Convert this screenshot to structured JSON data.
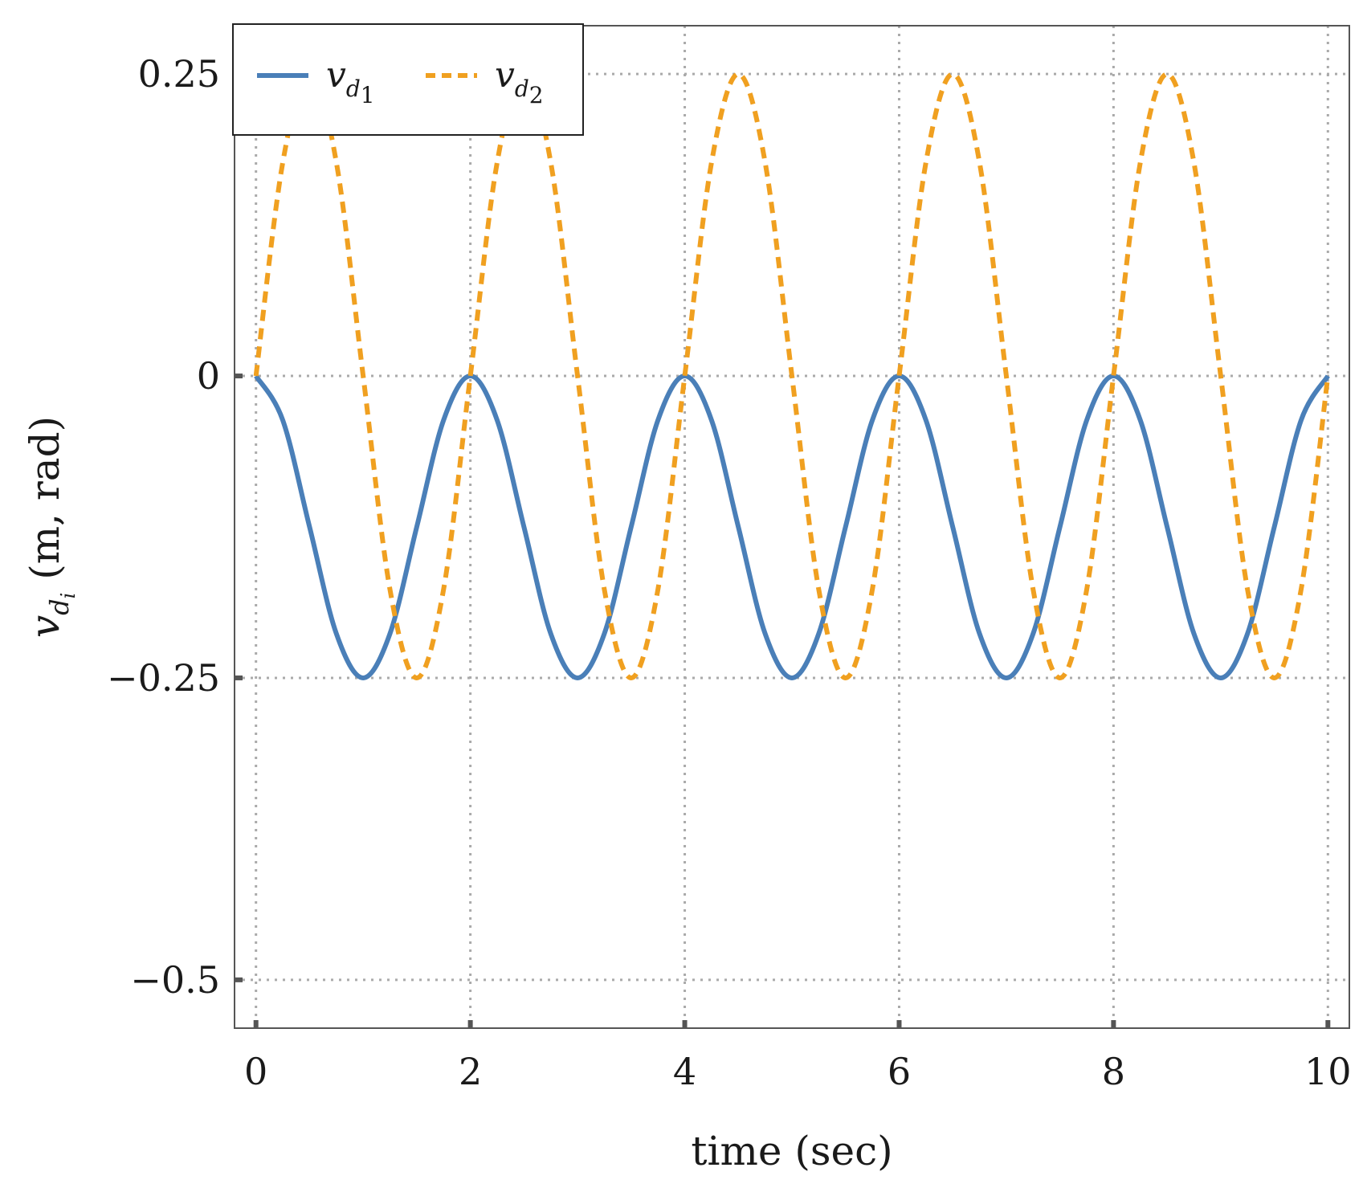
{
  "chart_data": {
    "type": "line",
    "xlabel": "time (sec)",
    "ylabel": {
      "symbol": "v",
      "sub": "d",
      "subsub": "i",
      "unit": "(m, rad)"
    },
    "xlim": [
      -0.2,
      10.2
    ],
    "ylim": [
      -0.54,
      0.29
    ],
    "x_ticks": [
      {
        "value": 0,
        "label": "0"
      },
      {
        "value": 2,
        "label": "2"
      },
      {
        "value": 4,
        "label": "4"
      },
      {
        "value": 6,
        "label": "6"
      },
      {
        "value": 8,
        "label": "8"
      },
      {
        "value": 10,
        "label": "10"
      }
    ],
    "y_ticks": [
      {
        "value": 0.25,
        "label": "0.25"
      },
      {
        "value": 0,
        "label": "0"
      },
      {
        "value": -0.25,
        "label": "−0.25"
      },
      {
        "value": -0.5,
        "label": "−0.5"
      }
    ],
    "grid": true,
    "legend_position": "top-left",
    "series": [
      {
        "name": "v_{d_1}",
        "legend_symbol": "v",
        "legend_sub": "d",
        "legend_subsub": "1",
        "color": "#4a7fb8",
        "style": "solid",
        "x": [
          0,
          0.25,
          0.5,
          0.75,
          1,
          1.25,
          1.5,
          1.75,
          2,
          2.25,
          2.5,
          2.75,
          3,
          3.25,
          3.5,
          3.75,
          4,
          4.25,
          4.5,
          4.75,
          5,
          5.25,
          5.5,
          5.75,
          6,
          6.25,
          6.5,
          6.75,
          7,
          7.25,
          7.5,
          7.75,
          8,
          8.25,
          8.5,
          8.75,
          9,
          9.25,
          9.5,
          9.75,
          10
        ],
        "y": [
          0,
          -0.0366,
          -0.125,
          -0.2134,
          -0.25,
          -0.2134,
          -0.125,
          -0.0366,
          0,
          -0.0366,
          -0.125,
          -0.2134,
          -0.25,
          -0.2134,
          -0.125,
          -0.0366,
          0,
          -0.0366,
          -0.125,
          -0.2134,
          -0.25,
          -0.2134,
          -0.125,
          -0.0366,
          0,
          -0.0366,
          -0.125,
          -0.2134,
          -0.25,
          -0.2134,
          -0.125,
          -0.0366,
          0,
          -0.0366,
          -0.125,
          -0.2134,
          -0.25,
          -0.2134,
          -0.125,
          -0.0366,
          0
        ],
        "y_true_peaks_note_removed": []
      },
      {
        "name": "v_{d_2}",
        "legend_symbol": "v",
        "legend_sub": "d",
        "legend_subsub": "2",
        "color": "#f0a020",
        "style": "dashed",
        "x": [
          0,
          0.25,
          0.5,
          0.75,
          1,
          1.25,
          1.5,
          1.75,
          2,
          2.25,
          2.5,
          2.75,
          3,
          3.25,
          3.5,
          3.75,
          4,
          4.25,
          4.5,
          4.75,
          5,
          5.25,
          5.5,
          5.75,
          6,
          6.25,
          6.5,
          6.75,
          7,
          7.25,
          7.5,
          7.75,
          8,
          8.25,
          8.5,
          8.75,
          9,
          9.25,
          9.5,
          9.75,
          10
        ],
        "y": [
          0,
          0.1768,
          0.25,
          0.1768,
          0,
          -0.1768,
          -0.25,
          -0.1768,
          0,
          0.1768,
          0.25,
          0.1768,
          0,
          -0.1768,
          -0.25,
          -0.1768,
          0,
          0.1768,
          0.25,
          0.1768,
          0,
          -0.1768,
          -0.25,
          -0.1768,
          0,
          0.1768,
          0.25,
          0.1768,
          0,
          -0.1768,
          -0.25,
          -0.1768,
          0,
          0.1768,
          0.25,
          0.1768,
          0,
          -0.1768,
          -0.25,
          -0.1768,
          0
        ]
      }
    ]
  }
}
